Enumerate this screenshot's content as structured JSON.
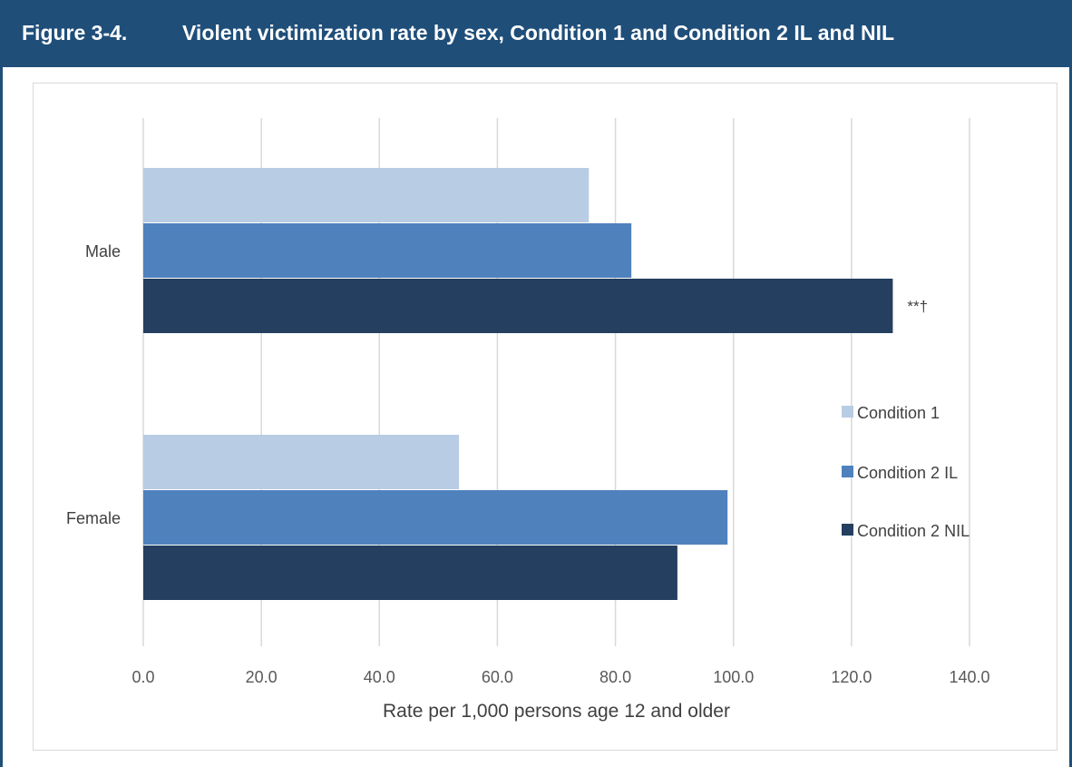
{
  "figure": {
    "number": "Figure 3-4.",
    "title": "Violent victimization rate by sex, Condition 1 and Condition 2 IL and NIL"
  },
  "colors": {
    "header_bg": "#1f4e79",
    "condition_1": "#b8cce4",
    "condition_2_il": "#4f81bd",
    "condition_2_nil": "#243f60",
    "gridline": "#d9d9d9"
  },
  "chart_data": {
    "type": "bar",
    "orientation": "horizontal",
    "title": "Violent victimization rate by sex, Condition 1 and Condition 2 IL and NIL",
    "xlabel": "Rate per 1,000 persons age 12 and older",
    "ylabel": "",
    "categories": [
      "Male",
      "Female"
    ],
    "series": [
      {
        "name": "Condition 1",
        "values": [
          75.5,
          53.5
        ]
      },
      {
        "name": "Condition 2 IL",
        "values": [
          82.7,
          99.0
        ]
      },
      {
        "name": "Condition 2 NIL",
        "values": [
          127.0,
          90.5
        ]
      }
    ],
    "annotations": [
      {
        "category": "Male",
        "series": "Condition 2 NIL",
        "text": "**†"
      }
    ],
    "xlim": [
      0,
      140
    ],
    "xticks": [
      "0.0",
      "20.0",
      "40.0",
      "60.0",
      "80.0",
      "100.0",
      "120.0",
      "140.0"
    ],
    "grid": true,
    "legend_position": "right"
  }
}
